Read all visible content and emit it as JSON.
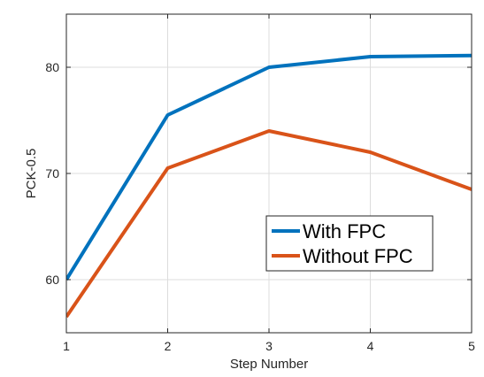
{
  "chart_data": {
    "type": "line",
    "title": "",
    "xlabel": "Step Number",
    "ylabel": "PCK-0.5",
    "x": [
      1,
      2,
      3,
      4,
      5
    ],
    "xlim": [
      1,
      5
    ],
    "ylim": [
      55,
      85
    ],
    "xticks": [
      "1",
      "2",
      "3",
      "4",
      "5"
    ],
    "yticks": [
      "60",
      "70",
      "80"
    ],
    "grid": true,
    "legend_position": "center-right",
    "series": [
      {
        "name": "With FPC",
        "color": "#0072bd",
        "values": [
          60,
          75.5,
          80,
          81,
          81.1
        ]
      },
      {
        "name": "Without FPC",
        "color": "#d95319",
        "values": [
          56.5,
          70.5,
          74,
          72,
          68.5
        ]
      }
    ]
  }
}
